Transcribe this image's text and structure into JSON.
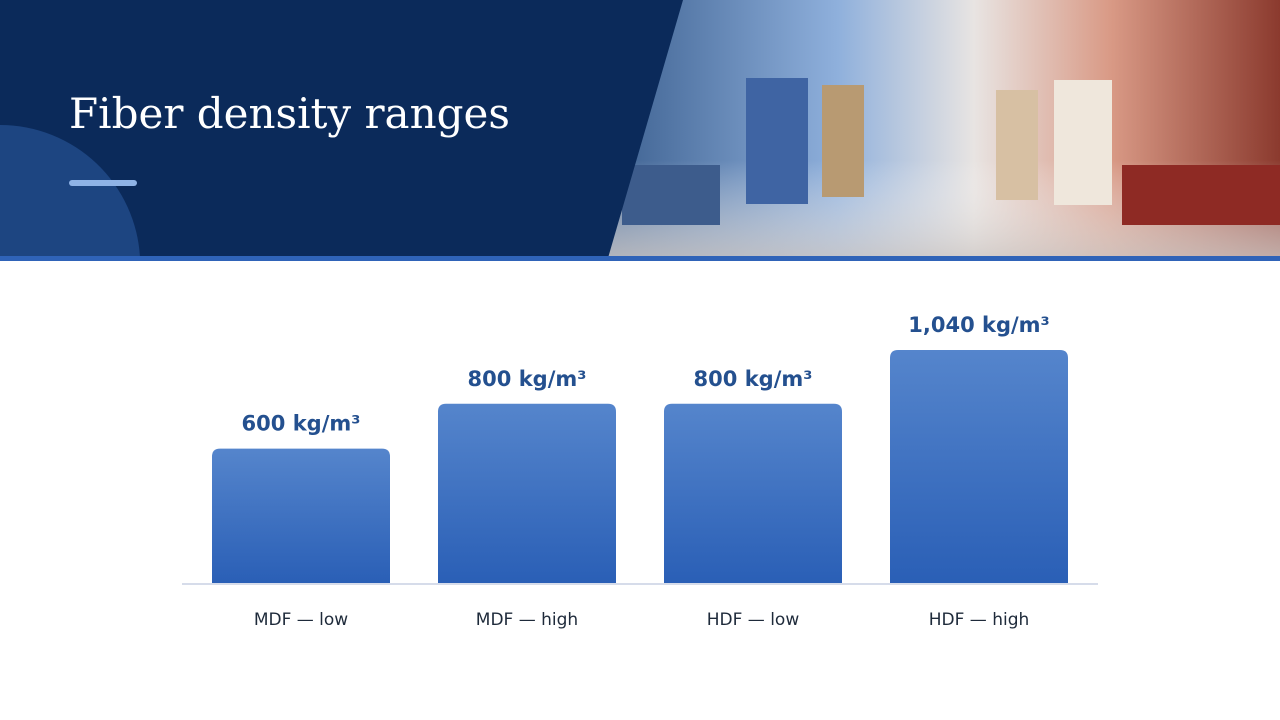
{
  "chart_data": {
    "type": "bar",
    "title": "Fiber density ranges",
    "categories": [
      "MDF — low",
      "MDF — high",
      "HDF — low",
      "HDF — high"
    ],
    "values": [
      600,
      800,
      800,
      1040
    ],
    "value_labels": [
      "600 kg/m³",
      "800 kg/m³",
      "800 kg/m³",
      "1,040 kg/m³"
    ],
    "color": "#2f63b8"
  }
}
